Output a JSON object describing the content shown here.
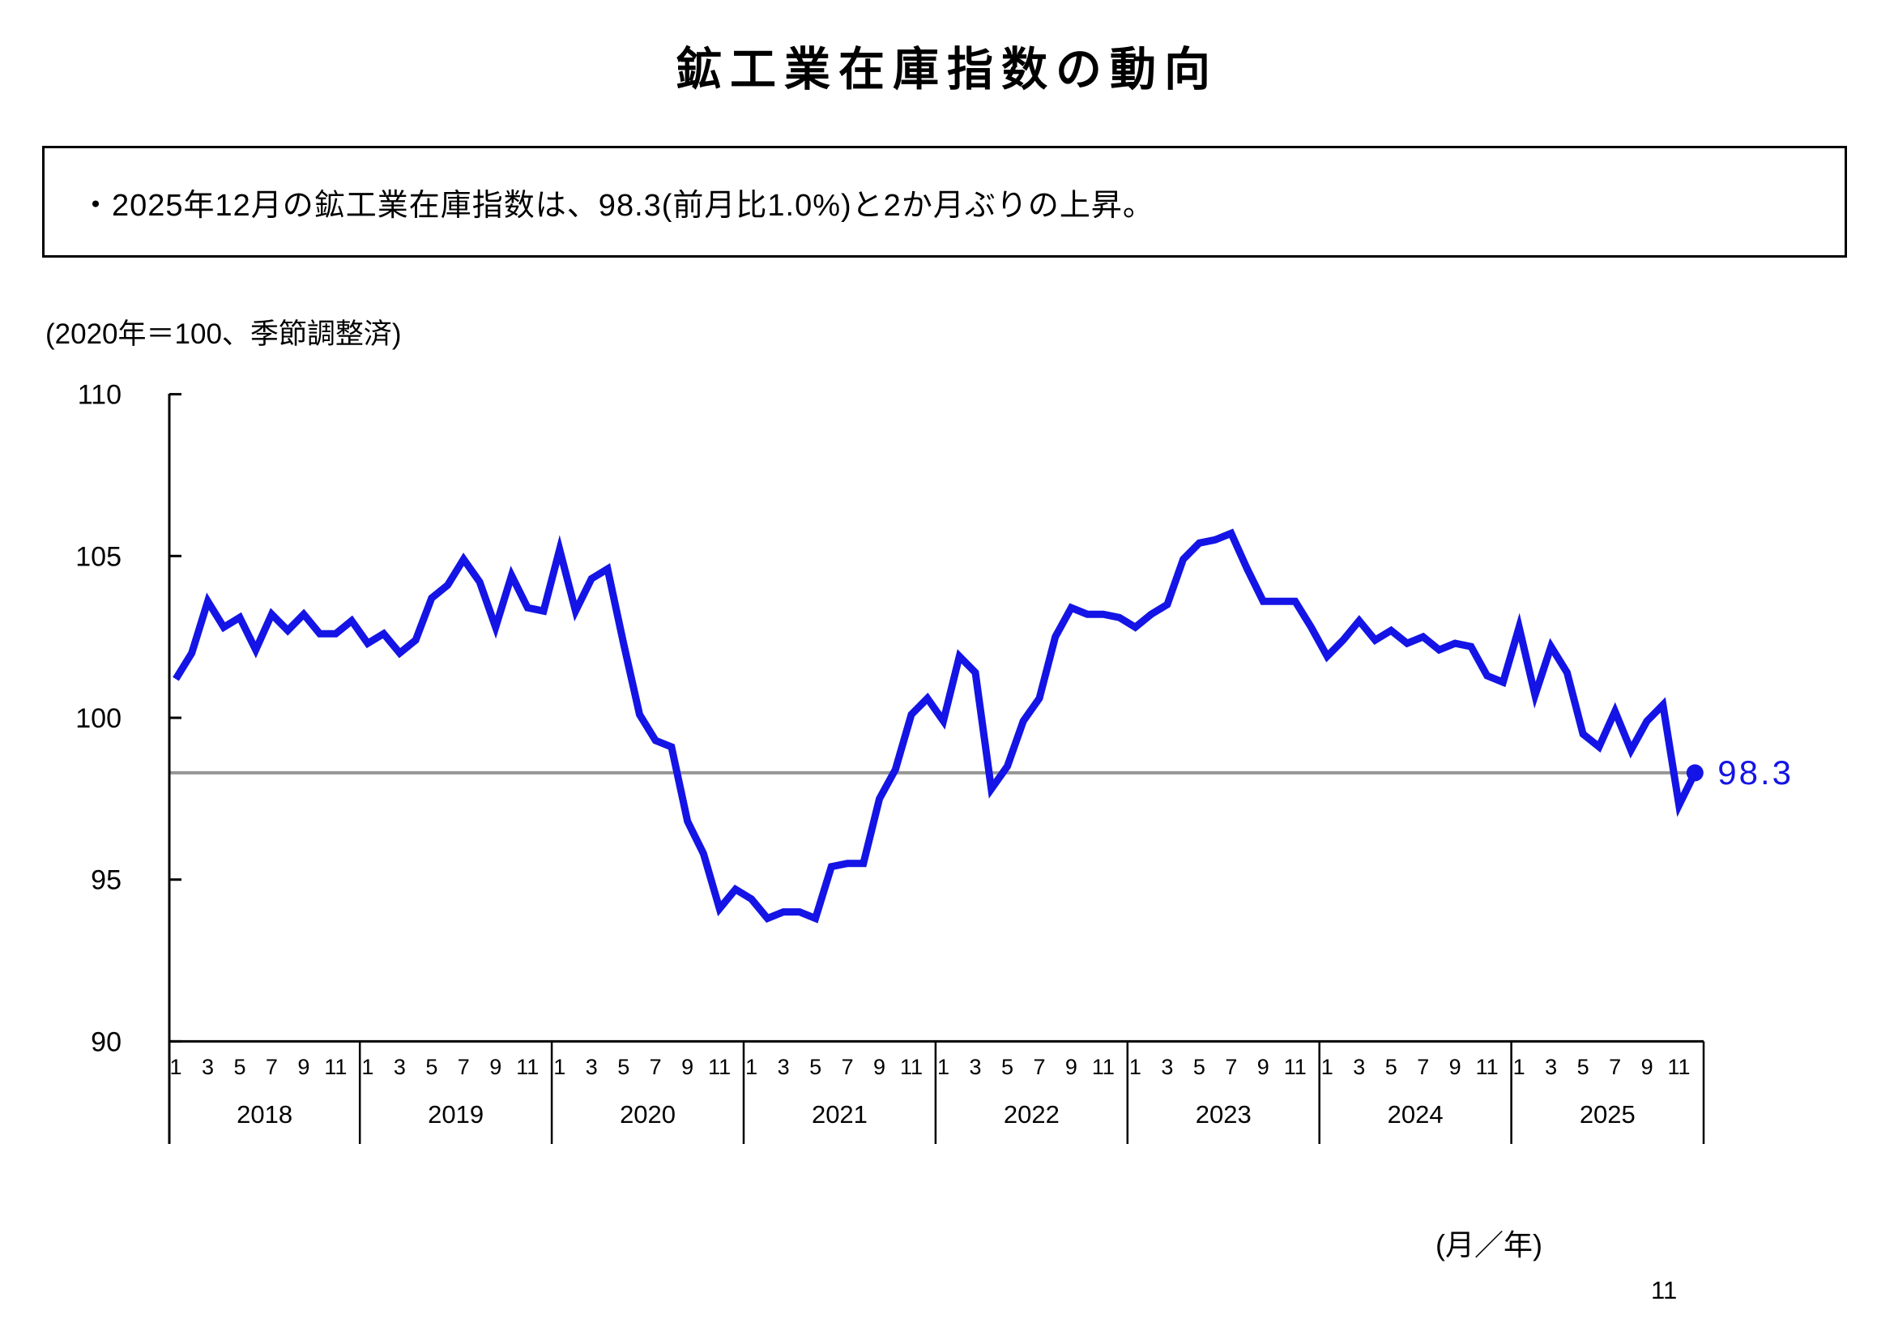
{
  "page": {
    "title": "鉱工業在庫指数の動向",
    "annotation": "・2025年12月の鉱工業在庫指数は、98.3(前月比1.0%)と2か月ぶりの上昇。",
    "unit_note": "(2020年＝100、季節調整済)",
    "xaxis_note": "(月／年)",
    "page_number": "11"
  },
  "chart_data": {
    "type": "line",
    "title": "鉱工業在庫指数の動向",
    "y_axis": {
      "ticks": [
        110,
        105,
        100,
        95,
        90
      ],
      "lim": [
        90,
        110
      ],
      "unit": "2020年＝100、季節調整済",
      "grid": false
    },
    "x_axis": {
      "years": [
        "2018",
        "2019",
        "2020",
        "2021",
        "2022",
        "2023",
        "2024",
        "2025"
      ],
      "month_ticks": [
        "1",
        "3",
        "5",
        "7",
        "9",
        "11"
      ],
      "label": "(月／年)"
    },
    "reference_line": {
      "value": 98.3,
      "color": "#969696"
    },
    "end_point": {
      "label": "98.3",
      "value": 98.3
    },
    "legend": "none",
    "series": [
      {
        "name": "鉱工業在庫指数（季節調整済）",
        "color": "#1414e6",
        "start": "2018-01",
        "values": [
          101.2,
          102.0,
          103.6,
          102.8,
          103.1,
          102.1,
          103.2,
          102.7,
          103.2,
          102.6,
          102.6,
          103.0,
          102.3,
          102.6,
          102.0,
          102.4,
          103.7,
          104.1,
          104.9,
          104.2,
          102.8,
          104.4,
          103.4,
          103.3,
          105.2,
          103.3,
          104.3,
          104.6,
          102.3,
          100.1,
          99.3,
          99.1,
          96.8,
          95.8,
          94.1,
          94.7,
          94.4,
          93.8,
          94.0,
          94.0,
          93.8,
          95.4,
          95.5,
          95.5,
          97.5,
          98.4,
          100.1,
          100.6,
          99.9,
          101.9,
          101.4,
          97.8,
          98.5,
          99.9,
          100.6,
          102.5,
          103.4,
          103.2,
          103.2,
          103.1,
          102.8,
          103.2,
          103.5,
          104.9,
          105.4,
          105.5,
          105.7,
          104.6,
          103.6,
          103.6,
          103.6,
          102.8,
          101.9,
          102.4,
          103.0,
          102.4,
          102.7,
          102.3,
          102.5,
          102.1,
          102.3,
          102.2,
          101.3,
          101.1,
          102.8,
          100.7,
          102.2,
          101.4,
          99.5,
          99.1,
          100.2,
          99.0,
          99.9,
          100.4,
          97.3,
          98.3
        ]
      }
    ]
  }
}
